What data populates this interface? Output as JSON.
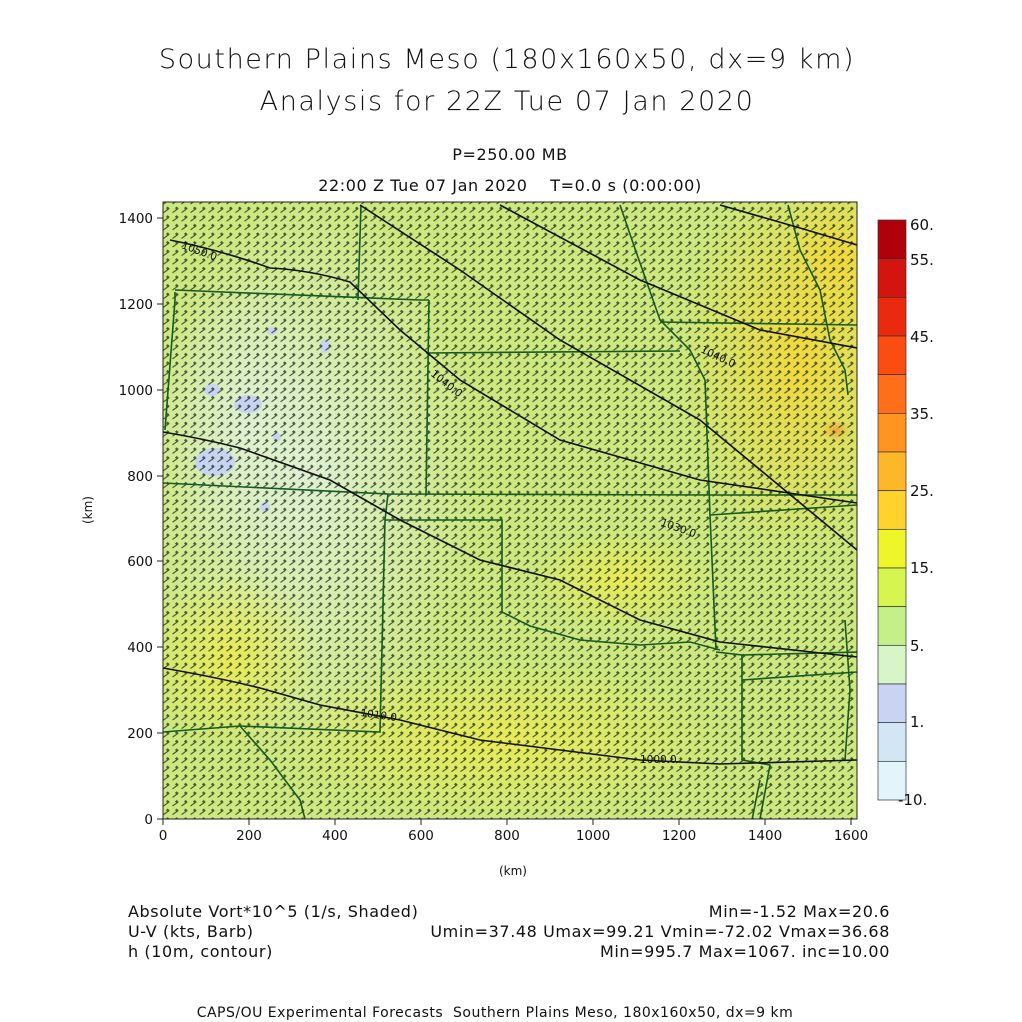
{
  "header": {
    "title_line1": "Southern Plains Meso (180x160x50, dx=9 km)",
    "title_line2": "Analysis for 22Z Tue 07 Jan 2020",
    "level": "P=250.00 MB",
    "valid_time": "22:00 Z Tue 07 Jan 2020    T=0.0 s (0:00:00)"
  },
  "axes": {
    "x_label": "(km)",
    "y_label": "(km)",
    "x_ticks": [
      "0",
      "200",
      "400",
      "600",
      "800",
      "1000",
      "1200",
      "1400",
      "1600"
    ],
    "y_ticks": [
      "0",
      "200",
      "400",
      "600",
      "800",
      "1000",
      "1200",
      "1400"
    ]
  },
  "colorbar": {
    "labels": [
      "60.",
      "55.",
      "45.",
      "35.",
      "25.",
      "15.",
      "5.",
      "1.",
      "-10."
    ],
    "colors": [
      "#b0000b",
      "#d4140e",
      "#ea2a0f",
      "#fb4c12",
      "#ff6f1a",
      "#ff9420",
      "#ffb72a",
      "#ffd22e",
      "#eef528",
      "#d7f550",
      "#c4f08a",
      "#d8f5c8",
      "#c8d4f2",
      "#d2e6f6",
      "#e4f4fb"
    ]
  },
  "field_labels": {
    "vort_name": "Absolute Vort*10^5 (1/s, Shaded)",
    "vort_stats": "Min=-1.52 Max=20.6",
    "wind_name": "U-V (kts, Barb)",
    "wind_stats": "Umin=37.48 Umax=99.21 Vmin=-72.02 Vmax=36.68",
    "height_name": "h (10m, contour)",
    "height_stats": "Min=995.7 Max=1067. inc=10.00"
  },
  "contour_labels": [
    "1050.0",
    "1040.0",
    "1040.0",
    "1030.0",
    "1010.0",
    "1000.0"
  ],
  "footer": "CAPS/OU Experimental Forecasts  Southern Plains Meso, 180x160x50, dx=9 km"
}
